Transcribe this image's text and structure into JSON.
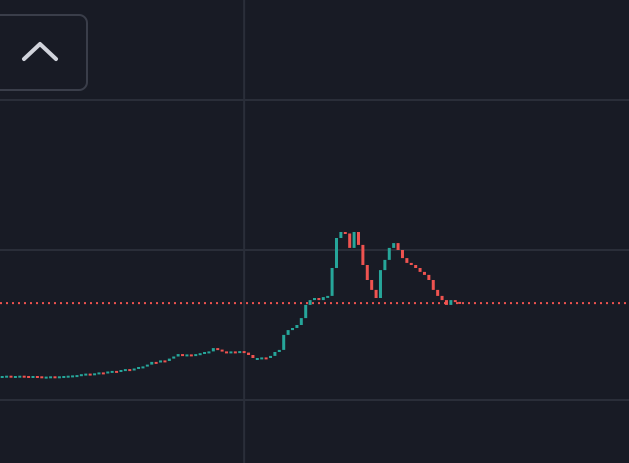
{
  "chart_data": {
    "type": "candlestick",
    "open": [
      8.0,
      8.0,
      8.1,
      8.0,
      8.0,
      8.1,
      8.0,
      7.9,
      8.0,
      7.9,
      7.8,
      7.8,
      7.9,
      7.8,
      7.9,
      8.0,
      8.1,
      8.2,
      8.3,
      8.6,
      8.8,
      8.7,
      8.9,
      9.2,
      9.0,
      9.5,
      9.7,
      9.6,
      10.0,
      10.3,
      10.1,
      10.5,
      11.0,
      11.2,
      11.8,
      12.7,
      12.5,
      13.2,
      13.0,
      13.8,
      14.5,
      15.3,
      15.0,
      15.2,
      14.8,
      15.3,
      15.6,
      16.0,
      16.2,
      17.3,
      16.8,
      16.2,
      15.9,
      16.2,
      16.0,
      16.3,
      15.8,
      15.0,
      14.0,
      14.0,
      14.2,
      14.0,
      14.7,
      16.0,
      16.7,
      21.7,
      23.3,
      24.0,
      25.0,
      27.3,
      31.7,
      33.3,
      34.0,
      33.3,
      34.3,
      34.7,
      44.0,
      54.0,
      56.0,
      55.5,
      50.7,
      56.0,
      51.7,
      45.0,
      40.0,
      36.7,
      34.0,
      43.3,
      46.7,
      50.7,
      52.3,
      50.0,
      47.3,
      45.7,
      45.0,
      44.0,
      42.7,
      41.7,
      40.0,
      36.7,
      34.7,
      33.3,
      31.7,
      33.3,
      32.7
    ],
    "close": [
      8.0,
      8.1,
      8.0,
      8.0,
      8.1,
      8.0,
      7.9,
      8.0,
      7.9,
      7.8,
      7.8,
      7.9,
      7.8,
      7.9,
      8.0,
      8.1,
      8.2,
      8.3,
      8.6,
      8.8,
      8.7,
      8.9,
      9.2,
      9.0,
      9.5,
      9.7,
      9.6,
      10.0,
      10.3,
      10.1,
      10.5,
      11.0,
      11.2,
      11.8,
      12.7,
      12.5,
      13.2,
      13.0,
      13.8,
      14.5,
      15.3,
      15.0,
      15.2,
      14.8,
      15.3,
      15.6,
      16.0,
      16.2,
      17.3,
      16.8,
      16.2,
      15.9,
      16.2,
      16.0,
      16.3,
      15.8,
      15.0,
      14.0,
      14.0,
      14.2,
      14.0,
      14.7,
      16.0,
      16.7,
      21.7,
      23.3,
      24.0,
      25.0,
      27.3,
      31.7,
      33.3,
      34.0,
      33.3,
      34.3,
      34.7,
      44.0,
      54.0,
      56.0,
      55.5,
      50.7,
      56.0,
      51.7,
      45.0,
      40.0,
      36.7,
      34.0,
      43.3,
      46.7,
      50.7,
      52.3,
      50.0,
      47.3,
      45.7,
      45.0,
      44.0,
      42.7,
      41.7,
      40.0,
      36.7,
      34.7,
      33.3,
      31.7,
      33.3,
      32.7,
      32.3
    ],
    "up_color": "#26a69a",
    "down_color": "#ef5350",
    "grid_color": "#2a2e39",
    "xlim": [
      -0.5,
      142.5
    ],
    "xticks": [
      55
    ],
    "ylim": [
      -20,
      130
    ],
    "yticks": [
      0,
      50,
      100
    ],
    "grid": true
  }
}
